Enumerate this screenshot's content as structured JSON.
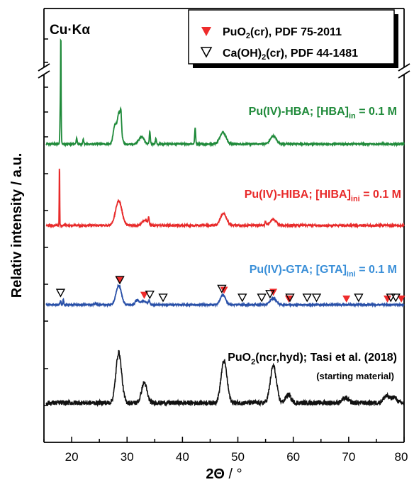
{
  "chart_data": {
    "type": "line",
    "radiation_label": "Cu·Kα",
    "xlabel_main": "2Θ",
    "xlabel_unit": " / °",
    "ylabel": "Relativ intensity / a.u.",
    "xlim": [
      15,
      80
    ],
    "x_ticks": [
      20,
      30,
      40,
      50,
      60,
      70,
      80
    ],
    "legend": {
      "position": "top-right",
      "entries": [
        {
          "symbol": "filled-down-triangle",
          "color": "#ee2b2b",
          "text_main": "PuO",
          "text_sub": "2",
          "text_rest": "(cr), PDF 75-2011"
        },
        {
          "symbol": "open-down-triangle",
          "color": "#000000",
          "text_main": "Ca(OH)",
          "text_sub": "2",
          "text_rest": "(cr), PDF 44-1481"
        }
      ]
    },
    "series": [
      {
        "name_main": "Pu(IV)-HBA; [HBA]",
        "name_sub": "in",
        "name_rest": " = 0.1 M",
        "color": "#1f8a3a",
        "baseline": 0.05,
        "noise": 0.02,
        "peaks": [
          [
            18.0,
            1.35,
            0.15
          ],
          [
            18.05,
            1.7,
            0.06
          ],
          [
            20.9,
            0.15,
            0.15
          ],
          [
            22.1,
            0.12,
            0.15
          ],
          [
            27.8,
            0.45,
            0.5
          ],
          [
            28.6,
            0.8,
            0.55
          ],
          [
            28.9,
            0.35,
            0.15
          ],
          [
            32.6,
            0.18,
            0.8
          ],
          [
            34.1,
            0.32,
            0.15
          ],
          [
            35.2,
            0.15,
            0.15
          ],
          [
            42.3,
            0.4,
            0.15
          ],
          [
            47.3,
            0.3,
            0.9
          ],
          [
            56.4,
            0.2,
            0.9
          ]
        ]
      },
      {
        "name_main": "Pu(IV)-HIBA; [HIBA]",
        "name_sub": "ini",
        "name_rest": " = 0.1 M",
        "color": "#e82a2a",
        "baseline": 0.05,
        "noise": 0.02,
        "peaks": [
          [
            17.8,
            1.45,
            0.07
          ],
          [
            28.5,
            0.58,
            0.95
          ],
          [
            33.2,
            0.12,
            0.8
          ],
          [
            33.9,
            0.15,
            0.15
          ],
          [
            47.4,
            0.28,
            0.9
          ],
          [
            55.0,
            0.1,
            0.15
          ],
          [
            56.4,
            0.14,
            0.9
          ]
        ]
      },
      {
        "name_main": "Pu(IV)-GTA; [GTA]",
        "name_sub": "ini",
        "name_rest": " =  0.1 M",
        "color": "#2950a8",
        "baseline": 0.06,
        "noise": 0.015,
        "peaks": [
          [
            18.0,
            0.1,
            0.12
          ],
          [
            18.5,
            0.12,
            0.12
          ],
          [
            24.3,
            0.03,
            0.3
          ],
          [
            28.5,
            0.4,
            0.8
          ],
          [
            31.8,
            0.1,
            0.5
          ],
          [
            33.0,
            0.08,
            0.8
          ],
          [
            34.0,
            0.08,
            0.2
          ],
          [
            47.3,
            0.2,
            0.8
          ],
          [
            56.4,
            0.14,
            0.9
          ]
        ],
        "markers_puo2": [
          28.6,
          33.1,
          47.5,
          56.4,
          59.2,
          69.6,
          77.0,
          79.5
        ],
        "markers_caoh2": [
          18.0,
          28.7,
          34.1,
          36.5,
          47.1,
          50.8,
          54.3,
          55.8,
          59.4,
          62.5,
          64.2,
          71.8,
          77.6,
          78.5
        ]
      },
      {
        "name_main": "PuO",
        "name_sub": "2",
        "name_rest": "(ncr,hyd); Tasi et al. (2018)",
        "note": "(starting material)",
        "color": "#111111",
        "baseline": 0.05,
        "noise": 0.035,
        "peaks": [
          [
            28.5,
            0.75,
            0.85
          ],
          [
            33.1,
            0.3,
            0.8
          ],
          [
            47.5,
            0.62,
            0.9
          ],
          [
            56.4,
            0.55,
            0.9
          ],
          [
            59.1,
            0.12,
            0.8
          ],
          [
            69.4,
            0.07,
            0.9
          ],
          [
            76.8,
            0.1,
            0.9
          ],
          [
            78.2,
            0.08,
            0.8
          ]
        ]
      }
    ]
  }
}
